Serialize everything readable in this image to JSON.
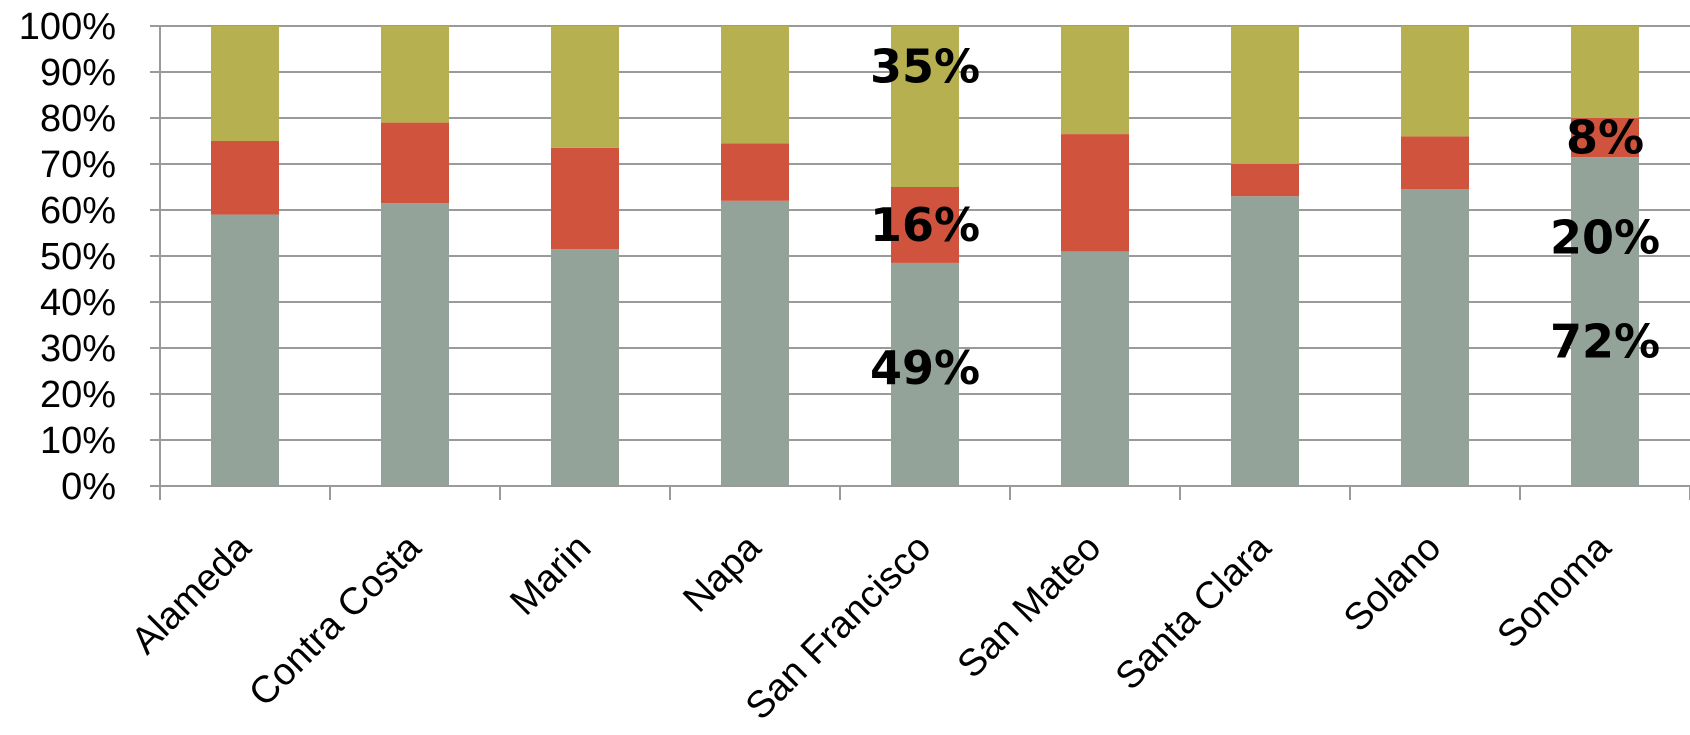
{
  "chart_data": {
    "type": "bar",
    "stacked": true,
    "categories": [
      "Alameda",
      "Contra Costa",
      "Marin",
      "Napa",
      "San Francisco",
      "San Mateo",
      "Santa Clara",
      "Solano",
      "Sonoma"
    ],
    "series": [
      {
        "color": "#94a39a",
        "values": [
          59,
          61.5,
          51.5,
          62,
          48.5,
          51,
          63,
          64.5,
          71.5
        ]
      },
      {
        "color": "#d0533e",
        "values": [
          16,
          17.5,
          22,
          12.5,
          16.5,
          25.5,
          7,
          11.5,
          8.5
        ]
      },
      {
        "color": "#b6b050",
        "values": [
          25,
          21,
          26.5,
          25.5,
          35,
          23.5,
          30,
          24,
          20
        ]
      }
    ],
    "ylim": [
      0,
      100
    ],
    "yticks": [
      "0%",
      "10%",
      "20%",
      "30%",
      "40%",
      "50%",
      "60%",
      "70%",
      "80%",
      "90%",
      "100%"
    ],
    "grid": true,
    "data_labels": [
      {
        "category": "San Francisco",
        "series": 0,
        "text": "49%"
      },
      {
        "category": "San Francisco",
        "series": 1,
        "text": "16%"
      },
      {
        "category": "San Francisco",
        "series": 2,
        "text": "35%"
      },
      {
        "category": "Sonoma",
        "series": 0,
        "text": "72%"
      },
      {
        "category": "Sonoma",
        "series": 1,
        "text": "8%"
      },
      {
        "category": "Sonoma",
        "series": 2,
        "text": "20%"
      }
    ]
  }
}
